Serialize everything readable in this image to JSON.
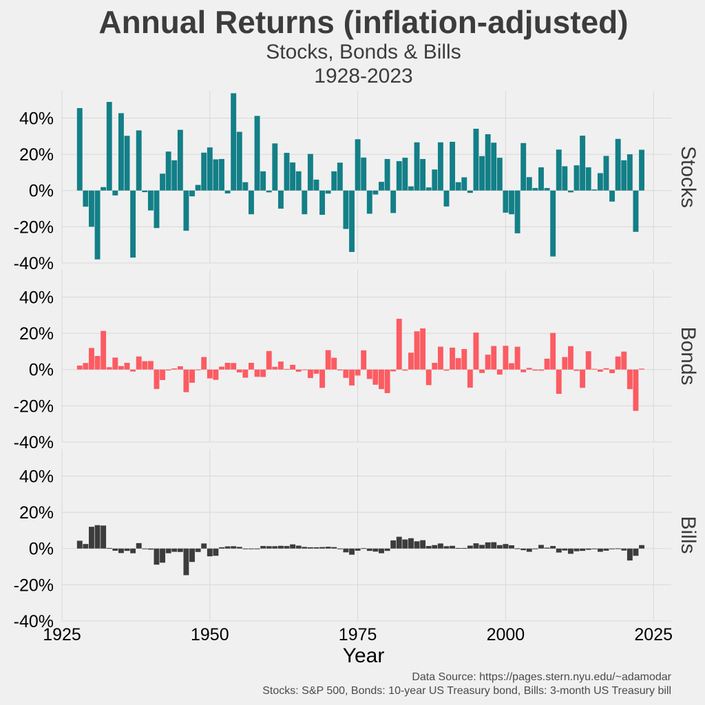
{
  "chart_data": {
    "type": "bar",
    "title": "Annual Returns (inflation-adjusted)",
    "subtitle_line1": "Stocks, Bonds & Bills",
    "subtitle_line2": "1928-2023",
    "xlabel": "Year",
    "xlim": [
      1925,
      2028
    ],
    "xticks": [
      1925,
      1950,
      1975,
      2000,
      2025
    ],
    "ylim": [
      -40,
      55
    ],
    "yticks": [
      -40,
      -20,
      0,
      20,
      40
    ],
    "ytick_labels": [
      "-40%",
      "-20%",
      "0%",
      "20%",
      "40%"
    ],
    "grid": true,
    "caption_line1": "Data Source: https://pages.stern.nyu.edu/~adamodar",
    "caption_line2": "Stocks: S&P 500, Bonds: 10-year US Treasury bond, Bills: 3-month US Treasury bill",
    "x": [
      1928,
      1929,
      1930,
      1931,
      1932,
      1933,
      1934,
      1935,
      1936,
      1937,
      1938,
      1939,
      1940,
      1941,
      1942,
      1943,
      1944,
      1945,
      1946,
      1947,
      1948,
      1949,
      1950,
      1951,
      1952,
      1953,
      1954,
      1955,
      1956,
      1957,
      1958,
      1959,
      1960,
      1961,
      1962,
      1963,
      1964,
      1965,
      1966,
      1967,
      1968,
      1969,
      1970,
      1971,
      1972,
      1973,
      1974,
      1975,
      1976,
      1977,
      1978,
      1979,
      1980,
      1981,
      1982,
      1983,
      1984,
      1985,
      1986,
      1987,
      1988,
      1989,
      1990,
      1991,
      1992,
      1993,
      1994,
      1995,
      1996,
      1997,
      1998,
      1999,
      2000,
      2001,
      2002,
      2003,
      2004,
      2005,
      2006,
      2007,
      2008,
      2009,
      2010,
      2011,
      2012,
      2013,
      2014,
      2015,
      2016,
      2017,
      2018,
      2019,
      2020,
      2021,
      2022,
      2023
    ],
    "series": [
      {
        "name": "Stocks",
        "color": "#137f87",
        "values": [
          45.5,
          -8.9,
          -20.0,
          -38.0,
          1.9,
          48.9,
          -2.7,
          42.7,
          30.2,
          -37.0,
          33.2,
          -0.9,
          -11.0,
          -20.7,
          9.3,
          21.5,
          16.7,
          33.5,
          -22.2,
          -3.2,
          3.1,
          20.9,
          23.8,
          17.2,
          17.4,
          -1.6,
          53.7,
          32.4,
          4.6,
          -13.1,
          41.2,
          10.6,
          -1.0,
          26.0,
          -10.0,
          20.8,
          15.5,
          10.6,
          -13.1,
          20.2,
          6.0,
          -13.4,
          -1.7,
          10.6,
          15.4,
          -21.2,
          -33.9,
          28.3,
          18.2,
          -12.8,
          -2.2,
          4.8,
          17.4,
          -12.4,
          16.2,
          18.1,
          2.3,
          26.6,
          17.4,
          1.7,
          11.6,
          26.6,
          -8.8,
          26.9,
          4.6,
          7.3,
          -1.3,
          34.1,
          19.0,
          31.1,
          26.4,
          18.1,
          -12.2,
          -13.1,
          -23.6,
          26.2,
          7.4,
          1.4,
          12.8,
          1.4,
          -36.4,
          22.6,
          13.4,
          -1.0,
          13.9,
          30.3,
          12.8,
          0.6,
          9.6,
          19.1,
          -6.1,
          28.5,
          16.7,
          20.0,
          -22.8,
          22.5
        ]
      },
      {
        "name": "Bonds",
        "color": "#fb5c62",
        "values": [
          2.2,
          3.6,
          11.9,
          7.5,
          21.3,
          1.3,
          6.6,
          1.9,
          3.7,
          -1.1,
          7.2,
          4.6,
          4.7,
          -10.7,
          -5.8,
          -0.5,
          0.6,
          1.8,
          -12.5,
          -7.3,
          -0.4,
          6.9,
          -4.9,
          -5.7,
          1.6,
          3.7,
          3.6,
          -1.6,
          -4.5,
          3.7,
          -4.0,
          -4.1,
          10.2,
          1.5,
          4.4,
          0.3,
          2.6,
          -1.2,
          0.0,
          -4.7,
          -2.3,
          -10.1,
          10.7,
          6.5,
          -0.5,
          -4.6,
          -8.8,
          -3.3,
          10.6,
          -5.2,
          -8.4,
          -10.8,
          -13.0,
          -1.0,
          28.0,
          -0.6,
          9.3,
          21.1,
          22.7,
          -8.6,
          3.7,
          12.6,
          -0.6,
          12.1,
          6.3,
          11.3,
          -10.0,
          20.4,
          -1.9,
          8.2,
          13.0,
          -2.8,
          13.1,
          3.5,
          12.6,
          -1.5,
          0.9,
          -0.6,
          -0.6,
          6.0,
          20.2,
          -13.4,
          6.9,
          12.9,
          -0.7,
          -10.1,
          10.1,
          0.4,
          -1.2,
          0.7,
          -2.0,
          7.2,
          9.9,
          -10.8,
          -22.8,
          0.5
        ]
      },
      {
        "name": "Bills",
        "color": "#3c3c3c",
        "values": [
          4.3,
          2.5,
          12.0,
          12.9,
          12.7,
          0.3,
          -1.2,
          -2.5,
          -1.3,
          -2.6,
          3.0,
          -0.1,
          -0.6,
          -8.9,
          -7.8,
          -2.6,
          -1.8,
          -1.9,
          -14.7,
          -7.4,
          -1.9,
          2.8,
          -4.3,
          -4.0,
          0.7,
          1.2,
          1.3,
          0.9,
          -0.3,
          -0.1,
          -0.1,
          1.4,
          1.3,
          1.3,
          1.5,
          1.4,
          2.3,
          1.6,
          0.9,
          0.7,
          0.7,
          0.8,
          1.0,
          0.8,
          -0.1,
          -2.1,
          -3.4,
          -1.2,
          0.2,
          -1.3,
          -1.7,
          -2.6,
          -1.3,
          4.5,
          6.5,
          5.0,
          5.7,
          4.0,
          4.6,
          1.4,
          1.9,
          2.8,
          1.3,
          1.5,
          0.3,
          0.3,
          1.6,
          2.9,
          2.0,
          3.4,
          3.5,
          1.9,
          2.5,
          1.8,
          0.1,
          -0.9,
          -1.8,
          0.0,
          2.0,
          0.5,
          1.4,
          -2.2,
          -1.1,
          -2.9,
          -1.5,
          -1.3,
          -0.7,
          -0.1,
          -1.8,
          -1.2,
          0.0,
          0.1,
          -1.1,
          -6.6,
          -4.0,
          1.9
        ]
      }
    ]
  }
}
